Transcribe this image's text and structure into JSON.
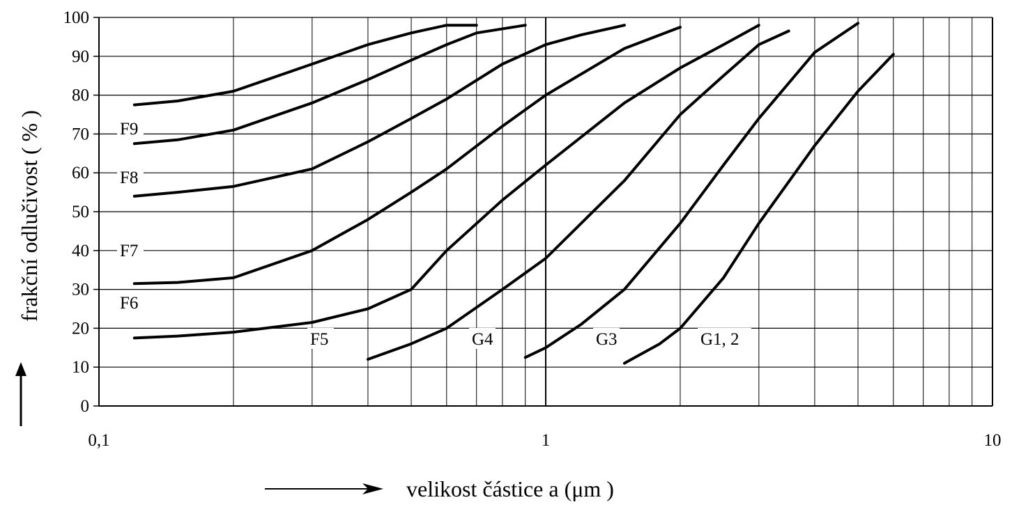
{
  "chart_data": {
    "type": "line",
    "xscale": "log",
    "xlim": [
      0.1,
      10
    ],
    "ylim": [
      0,
      100
    ],
    "grid": true,
    "legend": "none",
    "xlabel": "velikost částice a (μm )",
    "ylabel": "frakční odlučivost ( % )",
    "x_ticks": [
      "0,1",
      "1",
      "10"
    ],
    "y_ticks": [
      "0",
      "10",
      "20",
      "30",
      "40",
      "50",
      "60",
      "70",
      "80",
      "90",
      "100"
    ],
    "series": [
      {
        "name": "F9",
        "x": [
          0.12,
          0.15,
          0.2,
          0.3,
          0.4,
          0.5,
          0.6,
          0.7
        ],
        "y": [
          77.5,
          78.5,
          81,
          88,
          93,
          96,
          98,
          98
        ]
      },
      {
        "name": "F8",
        "x": [
          0.12,
          0.15,
          0.2,
          0.3,
          0.4,
          0.5,
          0.6,
          0.7,
          0.9
        ],
        "y": [
          67.5,
          68.5,
          71,
          78,
          84,
          89,
          93,
          96,
          98
        ]
      },
      {
        "name": "F7",
        "x": [
          0.12,
          0.15,
          0.2,
          0.3,
          0.4,
          0.5,
          0.6,
          0.8,
          1.0,
          1.2,
          1.5
        ],
        "y": [
          54,
          55,
          56.5,
          61,
          68,
          74,
          79,
          88,
          93,
          95.5,
          98
        ]
      },
      {
        "name": "F6",
        "x": [
          0.12,
          0.15,
          0.2,
          0.3,
          0.4,
          0.5,
          0.6,
          0.8,
          1.0,
          1.5,
          2.0
        ],
        "y": [
          31.5,
          31.8,
          33,
          40,
          48,
          55,
          61,
          72,
          80,
          92,
          97.5
        ]
      },
      {
        "name": "F5",
        "x": [
          0.12,
          0.15,
          0.2,
          0.3,
          0.4,
          0.5,
          0.6,
          0.8,
          1.0,
          1.5,
          2.0,
          2.5,
          3.0
        ],
        "y": [
          17.5,
          18,
          19,
          21.5,
          25,
          30,
          40,
          53,
          62,
          78,
          87,
          93,
          98
        ]
      },
      {
        "name": "G4",
        "x": [
          0.4,
          0.5,
          0.6,
          0.8,
          1.0,
          1.5,
          2.0,
          2.5,
          3.0,
          3.5
        ],
        "y": [
          12,
          16,
          20,
          30,
          38,
          58,
          75,
          85,
          93,
          96.5
        ]
      },
      {
        "name": "G3",
        "x": [
          0.9,
          1.0,
          1.2,
          1.5,
          2.0,
          2.5,
          3.0,
          4.0,
          5.0
        ],
        "y": [
          12.5,
          15,
          21,
          30,
          47,
          62,
          74,
          91,
          98.5
        ]
      },
      {
        "name": "G1, 2",
        "x": [
          1.5,
          1.8,
          2.0,
          2.5,
          3.0,
          4.0,
          5.0,
          6.0
        ],
        "y": [
          11,
          16,
          20,
          33,
          47,
          67,
          81,
          90.5
        ]
      }
    ]
  }
}
